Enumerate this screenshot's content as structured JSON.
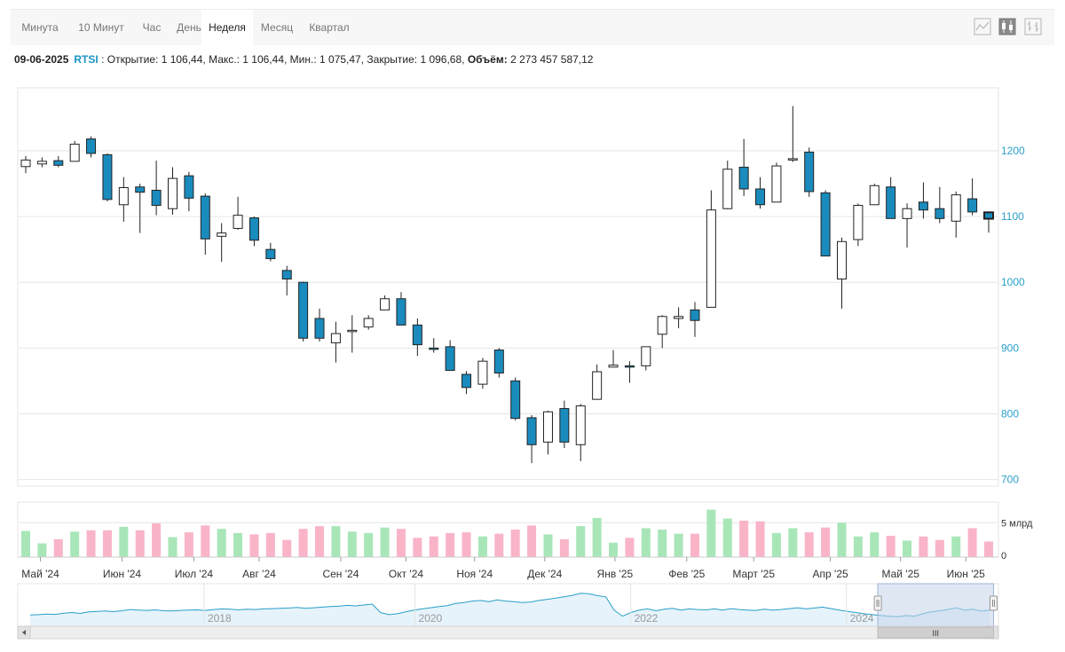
{
  "tabs": [
    "Минута",
    "10 Минут",
    "Час",
    "День",
    "Неделя",
    "Месяц",
    "Квартал"
  ],
  "active_tab": "Неделя",
  "toolbar_icons": [
    "line-chart-icon",
    "candlestick-icon",
    "ohlc-bars-icon"
  ],
  "info": {
    "date": "09-06-2025",
    "symbol": "RTSI",
    "sep": " : ",
    "open_label": "Открытие:",
    "open": "1 106,44",
    "high_label": "Макс.:",
    "high": "1 106,44",
    "low_label": "Мин.:",
    "low": "1 075,47",
    "close_label": "Закрытие:",
    "close": "1 096,68",
    "volume_label": "Объём:",
    "volume": "2 273 457 587,12"
  },
  "colors": {
    "up": "#ffffff",
    "down": "#1a8bbd",
    "grid": "#e6e6e6",
    "axis_label": "#2a9fc9",
    "vol_up": "#a8e6b8",
    "vol_down": "#f9b4c8",
    "nav_line": "#2a9fc9",
    "nav_fill": "#e6f3fa",
    "nav_select": "#c5d3ea"
  },
  "chart_data": {
    "type": "candlestick",
    "y_ticks": [
      700,
      800,
      900,
      1000,
      1100,
      1200
    ],
    "ylim": [
      690,
      1285
    ],
    "volume_ticks": [
      "5 млрд",
      "0"
    ],
    "volume_ylim": [
      0,
      8
    ],
    "x_labels": [
      "Май '24",
      "Июн '24",
      "Июл '24",
      "Авг '24",
      "Сен '24",
      "Окт '24",
      "Ноя '24",
      "Дек '24",
      "Янв '25",
      "Фев '25",
      "Март '25",
      "Апр '25",
      "Май '25",
      "Июн '25"
    ],
    "x_label_index": [
      0.9,
      5.9,
      10.3,
      14.3,
      19.3,
      23.3,
      27.5,
      31.8,
      36.1,
      40.5,
      44.6,
      49.3,
      53.6,
      57.6
    ],
    "candles": [
      {
        "o": 1176,
        "h": 1192,
        "l": 1166,
        "c": 1186,
        "v": 3.8
      },
      {
        "o": 1180,
        "h": 1190,
        "l": 1175,
        "c": 1184,
        "v": 2.0
      },
      {
        "o": 1185,
        "h": 1192,
        "l": 1175,
        "c": 1178,
        "v": 2.6
      },
      {
        "o": 1184,
        "h": 1215,
        "l": 1184,
        "c": 1210,
        "v": 3.7
      },
      {
        "o": 1218,
        "h": 1222,
        "l": 1190,
        "c": 1196,
        "v": 3.9
      },
      {
        "o": 1194,
        "h": 1196,
        "l": 1123,
        "c": 1126,
        "v": 3.9
      },
      {
        "o": 1118,
        "h": 1160,
        "l": 1092,
        "c": 1144,
        "v": 4.4
      },
      {
        "o": 1145,
        "h": 1150,
        "l": 1075,
        "c": 1137,
        "v": 3.9
      },
      {
        "o": 1140,
        "h": 1185,
        "l": 1102,
        "c": 1117,
        "v": 4.9
      },
      {
        "o": 1112,
        "h": 1175,
        "l": 1103,
        "c": 1158,
        "v": 2.9
      },
      {
        "o": 1162,
        "h": 1168,
        "l": 1108,
        "c": 1128,
        "v": 3.6
      },
      {
        "o": 1131,
        "h": 1135,
        "l": 1042,
        "c": 1066,
        "v": 4.6
      },
      {
        "o": 1070,
        "h": 1090,
        "l": 1031,
        "c": 1075,
        "v": 4.1
      },
      {
        "o": 1082,
        "h": 1130,
        "l": 1080,
        "c": 1102,
        "v": 3.5
      },
      {
        "o": 1098,
        "h": 1100,
        "l": 1055,
        "c": 1064,
        "v": 3.3
      },
      {
        "o": 1050,
        "h": 1060,
        "l": 1032,
        "c": 1036,
        "v": 3.5
      },
      {
        "o": 1018,
        "h": 1025,
        "l": 980,
        "c": 1005,
        "v": 2.5
      },
      {
        "o": 1000,
        "h": 1001,
        "l": 910,
        "c": 915,
        "v": 4.1
      },
      {
        "o": 945,
        "h": 960,
        "l": 910,
        "c": 915,
        "v": 4.5
      },
      {
        "o": 908,
        "h": 940,
        "l": 878,
        "c": 922,
        "v": 4.5
      },
      {
        "o": 927,
        "h": 950,
        "l": 893,
        "c": 927,
        "v": 3.7
      },
      {
        "o": 932,
        "h": 950,
        "l": 928,
        "c": 945,
        "v": 3.5
      },
      {
        "o": 958,
        "h": 980,
        "l": 958,
        "c": 975,
        "v": 4.3
      },
      {
        "o": 975,
        "h": 985,
        "l": 935,
        "c": 935,
        "v": 4.1
      },
      {
        "o": 935,
        "h": 945,
        "l": 888,
        "c": 905,
        "v": 2.8
      },
      {
        "o": 900,
        "h": 915,
        "l": 893,
        "c": 898,
        "v": 3.0
      },
      {
        "o": 902,
        "h": 912,
        "l": 867,
        "c": 866,
        "v": 3.5
      },
      {
        "o": 860,
        "h": 865,
        "l": 830,
        "c": 840,
        "v": 3.6
      },
      {
        "o": 845,
        "h": 885,
        "l": 838,
        "c": 880,
        "v": 3.0
      },
      {
        "o": 897,
        "h": 900,
        "l": 855,
        "c": 862,
        "v": 3.4
      },
      {
        "o": 850,
        "h": 855,
        "l": 790,
        "c": 793,
        "v": 4.0
      },
      {
        "o": 794,
        "h": 798,
        "l": 725,
        "c": 753,
        "v": 4.6
      },
      {
        "o": 757,
        "h": 805,
        "l": 738,
        "c": 803,
        "v": 3.3
      },
      {
        "o": 808,
        "h": 820,
        "l": 748,
        "c": 757,
        "v": 2.6
      },
      {
        "o": 753,
        "h": 815,
        "l": 728,
        "c": 812,
        "v": 4.5
      },
      {
        "o": 822,
        "h": 875,
        "l": 822,
        "c": 864,
        "v": 5.7
      },
      {
        "o": 871,
        "h": 897,
        "l": 871,
        "c": 874,
        "v": 2.1
      },
      {
        "o": 873,
        "h": 880,
        "l": 847,
        "c": 872,
        "v": 2.8
      },
      {
        "o": 873,
        "h": 898,
        "l": 866,
        "c": 902,
        "v": 4.2
      },
      {
        "o": 921,
        "h": 950,
        "l": 900,
        "c": 948,
        "v": 4.0
      },
      {
        "o": 945,
        "h": 962,
        "l": 930,
        "c": 948,
        "v": 3.4
      },
      {
        "o": 958,
        "h": 970,
        "l": 917,
        "c": 942,
        "v": 3.4
      },
      {
        "o": 962,
        "h": 1140,
        "l": 962,
        "c": 1110,
        "v": 6.9
      },
      {
        "o": 1112,
        "h": 1185,
        "l": 1111,
        "c": 1172,
        "v": 5.6
      },
      {
        "o": 1175,
        "h": 1218,
        "l": 1131,
        "c": 1142,
        "v": 5.3
      },
      {
        "o": 1142,
        "h": 1160,
        "l": 1112,
        "c": 1118,
        "v": 5.2
      },
      {
        "o": 1122,
        "h": 1182,
        "l": 1122,
        "c": 1177,
        "v": 3.5
      },
      {
        "o": 1186,
        "h": 1268,
        "l": 1183,
        "c": 1188,
        "v": 4.2
      },
      {
        "o": 1198,
        "h": 1205,
        "l": 1130,
        "c": 1138,
        "v": 3.6
      },
      {
        "o": 1136,
        "h": 1140,
        "l": 1040,
        "c": 1040,
        "v": 4.3
      },
      {
        "o": 1005,
        "h": 1068,
        "l": 960,
        "c": 1062,
        "v": 5.0
      },
      {
        "o": 1065,
        "h": 1120,
        "l": 1055,
        "c": 1117,
        "v": 3.0
      },
      {
        "o": 1118,
        "h": 1150,
        "l": 1118,
        "c": 1147,
        "v": 3.6
      },
      {
        "o": 1145,
        "h": 1160,
        "l": 1098,
        "c": 1097,
        "v": 3.1
      },
      {
        "o": 1097,
        "h": 1120,
        "l": 1053,
        "c": 1112,
        "v": 2.4
      },
      {
        "o": 1122,
        "h": 1152,
        "l": 1097,
        "c": 1110,
        "v": 3.0
      },
      {
        "o": 1112,
        "h": 1145,
        "l": 1090,
        "c": 1097,
        "v": 2.5
      },
      {
        "o": 1093,
        "h": 1138,
        "l": 1068,
        "c": 1133,
        "v": 3.0
      },
      {
        "o": 1127,
        "h": 1158,
        "l": 1102,
        "c": 1107,
        "v": 4.2
      },
      {
        "o": 1106.44,
        "h": 1106.44,
        "l": 1075.47,
        "c": 1096.68,
        "v": 2.27
      }
    ],
    "navigator": {
      "labels": [
        "2018",
        "2020",
        "2022",
        "2024"
      ],
      "label_pos": [
        0.19,
        0.405,
        0.625,
        0.845
      ],
      "selected_range": [
        0.877,
        0.995
      ],
      "scroll_label": "III",
      "series": [
        0.14,
        0.15,
        0.17,
        0.16,
        0.2,
        0.22,
        0.19,
        0.24,
        0.26,
        0.27,
        0.25,
        0.28,
        0.32,
        0.3,
        0.29,
        0.31,
        0.28,
        0.27,
        0.29,
        0.3,
        0.31,
        0.29,
        0.32,
        0.34,
        0.33,
        0.31,
        0.33,
        0.32,
        0.34,
        0.35,
        0.36,
        0.37,
        0.39,
        0.36,
        0.38,
        0.4,
        0.42,
        0.43,
        0.46,
        0.44,
        0.47,
        0.5,
        0.22,
        0.15,
        0.18,
        0.24,
        0.3,
        0.34,
        0.38,
        0.42,
        0.45,
        0.52,
        0.55,
        0.6,
        0.62,
        0.58,
        0.64,
        0.6,
        0.58,
        0.55,
        0.57,
        0.62,
        0.66,
        0.7,
        0.74,
        0.79,
        0.86,
        0.84,
        0.78,
        0.74,
        0.3,
        0.1,
        0.22,
        0.3,
        0.34,
        0.28,
        0.33,
        0.36,
        0.3,
        0.34,
        0.32,
        0.31,
        0.34,
        0.3,
        0.35,
        0.32,
        0.3,
        0.29,
        0.33,
        0.3,
        0.32,
        0.35,
        0.38,
        0.34,
        0.37,
        0.4,
        0.35,
        0.3,
        0.26,
        0.22,
        0.18,
        0.15,
        0.12,
        0.1,
        0.08,
        0.12,
        0.1,
        0.18,
        0.24,
        0.28,
        0.32,
        0.38,
        0.3,
        0.33,
        0.27,
        0.3
      ]
    }
  }
}
